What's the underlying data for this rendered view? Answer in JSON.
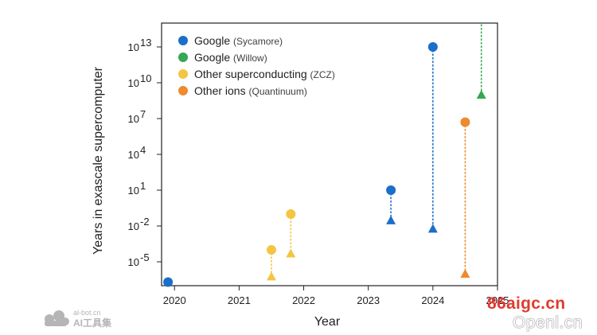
{
  "chart_data": {
    "type": "scatter",
    "xlabel": "Year",
    "ylabel": "Years in exascale supercomputer",
    "x_ticks": [
      "2020",
      "2021",
      "2022",
      "2023",
      "2024",
      "2025"
    ],
    "xlim": [
      2019.8,
      2025
    ],
    "y_scale": "log",
    "y_ticks": [
      {
        "value": 1e-05,
        "label": "10",
        "exp": "-5"
      },
      {
        "value": 0.01,
        "label": "10",
        "exp": "-2"
      },
      {
        "value": 10.0,
        "label": "10",
        "exp": "1"
      },
      {
        "value": 10000.0,
        "label": "10",
        "exp": "4"
      },
      {
        "value": 10000000.0,
        "label": "10",
        "exp": "7"
      },
      {
        "value": 10000000000.0,
        "label": "10",
        "exp": "10"
      },
      {
        "value": 10000000000000.0,
        "label": "10",
        "exp": "13"
      }
    ],
    "ylim": [
      1e-07,
      1000000000000000.0
    ],
    "legend_position": "top-left",
    "legend": [
      {
        "label": "Google",
        "sublabel": "(Sycamore)",
        "color": "#1a6fc9"
      },
      {
        "label": "Google",
        "sublabel": "(Willow)",
        "color": "#34a853"
      },
      {
        "label": "Other superconducting",
        "sublabel": "(ZCZ)",
        "color": "#f4c542"
      },
      {
        "label": "Other ions",
        "sublabel": "(Quantinuum)",
        "color": "#ee8a2f"
      }
    ],
    "series": [
      {
        "name": "Google (Sycamore)",
        "color": "#1a6fc9",
        "points": [
          {
            "x": 2019.9,
            "circle": 2e-07
          },
          {
            "x": 2023.35,
            "circle": 10,
            "triangle": 0.03
          },
          {
            "x": 2024.0,
            "circle": 10000000000000.0,
            "triangle": 0.006
          }
        ]
      },
      {
        "name": "Google (Willow)",
        "color": "#34a853",
        "points": [
          {
            "x": 2024.75,
            "triangle": 1000000000.0,
            "extends_above": true
          }
        ]
      },
      {
        "name": "Other superconducting (ZCZ)",
        "color": "#f4c542",
        "points": [
          {
            "x": 2021.5,
            "circle": 0.0001,
            "triangle": 6e-07
          },
          {
            "x": 2021.8,
            "circle": 0.1,
            "triangle": 5e-05
          }
        ]
      },
      {
        "name": "Other ions (Quantinuum)",
        "color": "#ee8a2f",
        "points": [
          {
            "x": 2024.5,
            "circle": 5000000.0,
            "triangle": 1e-06
          }
        ]
      }
    ]
  },
  "watermarks": {
    "logo_top": "al-bot.cn",
    "logo_bottom": "AI工具集",
    "site1": "86aigc.cn",
    "site2": "Openl.cn"
  }
}
